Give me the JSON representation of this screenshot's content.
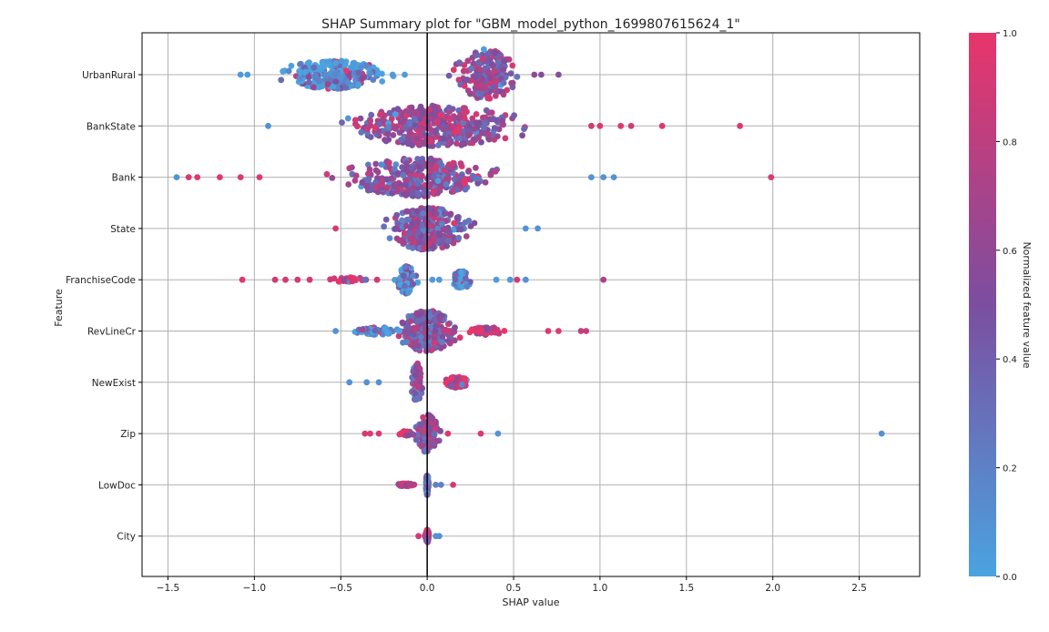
{
  "chart_data": {
    "type": "scatter",
    "subtype": "beeswarm",
    "title": "SHAP Summary plot for \"GBM_model_python_1699807615624_1\"",
    "xlabel": "SHAP value",
    "ylabel": "Feature",
    "xlim": [
      -1.65,
      2.85
    ],
    "x_ticks": [
      -1.5,
      -1.0,
      -0.5,
      0.0,
      0.5,
      1.0,
      1.5,
      2.0,
      2.5
    ],
    "x_tick_labels": [
      "−1.5",
      "−1.0",
      "−0.5",
      "0.0",
      "0.5",
      "1.0",
      "1.5",
      "2.0",
      "2.5"
    ],
    "grid": true,
    "zero_line": true,
    "colorbar": {
      "label": "Normalized feature value",
      "range": [
        0.0,
        1.0
      ],
      "ticks": [
        0.0,
        0.2,
        0.4,
        0.6,
        0.8,
        1.0
      ],
      "tick_labels": [
        "0.0",
        "0.2",
        "0.4",
        "0.6",
        "0.8",
        "1.0"
      ],
      "low_color": "#4aa3e0",
      "mid_color": "#7b4ea0",
      "high_color": "#e8356a"
    },
    "features": [
      {
        "name": "UrbanRural",
        "x_range": [
          -1.08,
          0.76
        ],
        "clusters": [
          {
            "center": -0.55,
            "spread": 0.28,
            "count": 230,
            "feature_value": 0.04,
            "jitter": 0.25,
            "width": 0.55
          },
          {
            "center": 0.35,
            "spread": 0.16,
            "count": 200,
            "feature_value": 0.62,
            "jitter": 0.35,
            "width": 1.0
          }
        ],
        "points": [
          {
            "x": -1.08,
            "v": 0.05
          },
          {
            "x": -1.04,
            "v": 0.05
          },
          {
            "x": -0.2,
            "v": 0.05
          },
          {
            "x": -0.13,
            "v": 0.05
          },
          {
            "x": 0.62,
            "v": 0.6
          },
          {
            "x": 0.66,
            "v": 0.55
          },
          {
            "x": 0.76,
            "v": 0.55
          }
        ]
      },
      {
        "name": "BankState",
        "x_range": [
          -0.92,
          1.81
        ],
        "clusters": [
          {
            "center": 0.05,
            "spread": 0.45,
            "count": 420,
            "feature_value": 0.6,
            "jitter": 0.35,
            "width": 0.8
          }
        ],
        "points": [
          {
            "x": -0.92,
            "v": 0.1
          },
          {
            "x": 0.95,
            "v": 0.9
          },
          {
            "x": 1.0,
            "v": 0.95
          },
          {
            "x": 1.12,
            "v": 0.95
          },
          {
            "x": 1.18,
            "v": 0.9
          },
          {
            "x": 1.36,
            "v": 0.95
          },
          {
            "x": 1.81,
            "v": 0.95
          }
        ]
      },
      {
        "name": "Bank",
        "x_range": [
          -1.45,
          1.99
        ],
        "clusters": [
          {
            "center": -0.05,
            "spread": 0.38,
            "count": 340,
            "feature_value": 0.55,
            "jitter": 0.35,
            "width": 0.75
          }
        ],
        "points": [
          {
            "x": -1.45,
            "v": 0.1
          },
          {
            "x": -1.38,
            "v": 0.95
          },
          {
            "x": -1.33,
            "v": 0.95
          },
          {
            "x": -1.2,
            "v": 0.95
          },
          {
            "x": -1.08,
            "v": 0.95
          },
          {
            "x": -0.97,
            "v": 0.95
          },
          {
            "x": 0.95,
            "v": 0.1
          },
          {
            "x": 1.02,
            "v": 0.1
          },
          {
            "x": 1.08,
            "v": 0.1
          },
          {
            "x": 1.99,
            "v": 0.95
          }
        ]
      },
      {
        "name": "State",
        "x_range": [
          -0.53,
          0.64
        ],
        "clusters": [
          {
            "center": 0.0,
            "spread": 0.2,
            "count": 330,
            "feature_value": 0.5,
            "jitter": 0.35,
            "width": 0.85
          }
        ],
        "points": [
          {
            "x": -0.53,
            "v": 0.9
          },
          {
            "x": 0.57,
            "v": 0.1
          },
          {
            "x": 0.64,
            "v": 0.1
          }
        ]
      },
      {
        "name": "FranchiseCode",
        "x_range": [
          -1.07,
          1.02
        ],
        "clusters": [
          {
            "center": -0.12,
            "spread": 0.05,
            "count": 90,
            "feature_value": 0.05,
            "jitter": 0.4,
            "width": 0.55
          },
          {
            "center": 0.2,
            "spread": 0.05,
            "count": 50,
            "feature_value": 0.08,
            "jitter": 0.3,
            "width": 0.35
          },
          {
            "center": -0.45,
            "spread": 0.1,
            "count": 30,
            "feature_value": 0.9,
            "jitter": 0.05,
            "width": 0.1
          }
        ],
        "points": [
          {
            "x": -1.07,
            "v": 0.95
          },
          {
            "x": -0.88,
            "v": 0.9
          },
          {
            "x": -0.82,
            "v": 0.9
          },
          {
            "x": -0.75,
            "v": 0.9
          },
          {
            "x": -0.68,
            "v": 0.9
          },
          {
            "x": -0.36,
            "v": 0.3
          },
          {
            "x": -0.29,
            "v": 0.9
          },
          {
            "x": 0.03,
            "v": 0.05
          },
          {
            "x": 0.07,
            "v": 0.05
          },
          {
            "x": 0.4,
            "v": 0.05
          },
          {
            "x": 0.48,
            "v": 0.05
          },
          {
            "x": 0.52,
            "v": 0.9
          },
          {
            "x": 0.57,
            "v": 0.1
          },
          {
            "x": 1.02,
            "v": 0.7
          }
        ]
      },
      {
        "name": "RevLineCr",
        "x_range": [
          -0.53,
          0.92
        ],
        "clusters": [
          {
            "center": 0.0,
            "spread": 0.15,
            "count": 260,
            "feature_value": 0.5,
            "jitter": 0.33,
            "width": 0.8
          },
          {
            "center": -0.3,
            "spread": 0.12,
            "count": 60,
            "feature_value": 0.08,
            "jitter": 0.05,
            "width": 0.15
          },
          {
            "center": 0.35,
            "spread": 0.1,
            "count": 60,
            "feature_value": 0.9,
            "jitter": 0.05,
            "width": 0.15
          }
        ],
        "points": [
          {
            "x": -0.53,
            "v": 0.1
          },
          {
            "x": 0.7,
            "v": 0.95
          },
          {
            "x": 0.76,
            "v": 0.95
          },
          {
            "x": 0.89,
            "v": 0.85
          },
          {
            "x": 0.92,
            "v": 0.85
          }
        ]
      },
      {
        "name": "NewExist",
        "x_range": [
          -0.45,
          0.3
        ],
        "clusters": [
          {
            "center": -0.06,
            "spread": 0.03,
            "count": 110,
            "feature_value": 0.5,
            "jitter": 0.4,
            "width": 0.75
          },
          {
            "center": 0.17,
            "spread": 0.06,
            "count": 110,
            "feature_value": 0.95,
            "jitter": 0.12,
            "width": 0.22
          }
        ],
        "points": [
          {
            "x": -0.45,
            "v": 0.1
          },
          {
            "x": -0.35,
            "v": 0.1
          },
          {
            "x": -0.28,
            "v": 0.1
          }
        ]
      },
      {
        "name": "Zip",
        "x_range": [
          -0.36,
          2.63
        ],
        "clusters": [
          {
            "center": 0.0,
            "spread": 0.06,
            "count": 130,
            "feature_value": 0.6,
            "jitter": 0.38,
            "width": 0.75
          },
          {
            "center": -0.12,
            "spread": 0.04,
            "count": 30,
            "feature_value": 0.9,
            "jitter": 0.03,
            "width": 0.1
          }
        ],
        "points": [
          {
            "x": -0.36,
            "v": 0.95
          },
          {
            "x": -0.33,
            "v": 0.95
          },
          {
            "x": -0.28,
            "v": 0.95
          },
          {
            "x": 0.12,
            "v": 0.95
          },
          {
            "x": 0.31,
            "v": 0.95
          },
          {
            "x": 0.41,
            "v": 0.1
          },
          {
            "x": 2.63,
            "v": 0.1
          }
        ]
      },
      {
        "name": "LowDoc",
        "x_range": [
          -0.24,
          0.15
        ],
        "clusters": [
          {
            "center": -0.12,
            "spread": 0.05,
            "count": 60,
            "feature_value": 0.97,
            "jitter": 0.02,
            "width": 0.05
          },
          {
            "center": 0.0,
            "spread": 0.006,
            "count": 100,
            "feature_value": 0.22,
            "jitter": 0.42,
            "width": 0.4
          }
        ],
        "points": [
          {
            "x": 0.05,
            "v": 0.2
          },
          {
            "x": 0.08,
            "v": 0.2
          },
          {
            "x": 0.15,
            "v": 0.9
          }
        ]
      },
      {
        "name": "City",
        "x_range": [
          -0.05,
          0.07
        ],
        "clusters": [
          {
            "center": 0.0,
            "spread": 0.01,
            "count": 110,
            "feature_value": 0.7,
            "jitter": 0.4,
            "width": 0.25
          }
        ],
        "points": [
          {
            "x": -0.05,
            "v": 0.9
          },
          {
            "x": 0.05,
            "v": 0.1
          },
          {
            "x": 0.07,
            "v": 0.1
          }
        ]
      }
    ]
  }
}
